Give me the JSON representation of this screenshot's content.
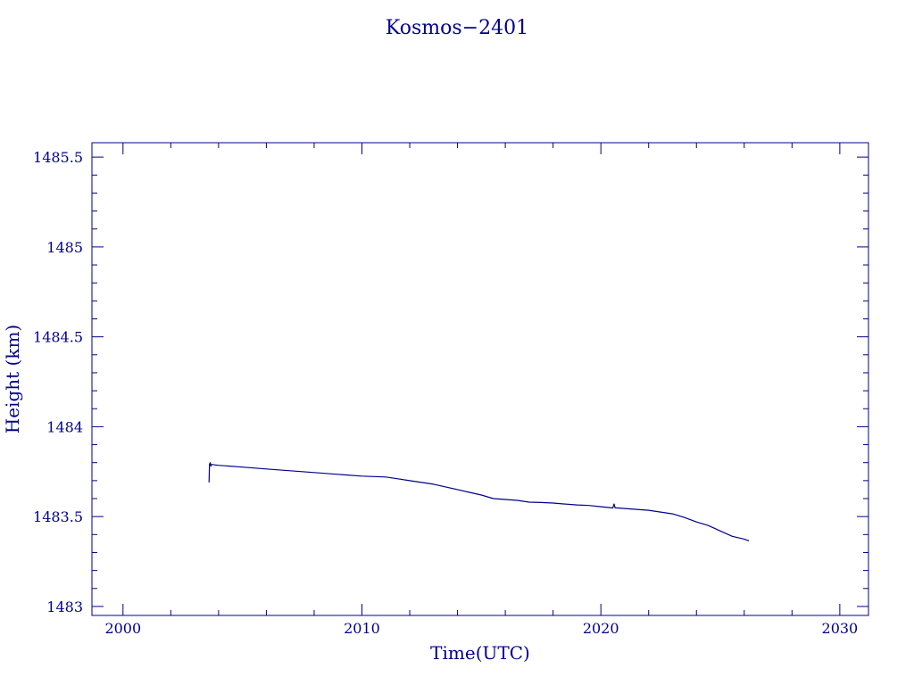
{
  "chart_data": {
    "type": "line",
    "title": "Kosmos−2401",
    "xlabel": "Time(UTC)",
    "ylabel": "Height (km)",
    "xlim": [
      1998.7,
      2031.2
    ],
    "ylim": [
      1482.95,
      1485.58
    ],
    "xticks": [
      2000,
      2010,
      2020,
      2030
    ],
    "xtick_labels": [
      "2000",
      "2010",
      "2020",
      "2030"
    ],
    "yticks": [
      1483,
      1483.5,
      1484,
      1484.5,
      1485,
      1485.5
    ],
    "ytick_labels": [
      "1483",
      "1483.5",
      "1484",
      "1484.5",
      "1485",
      "1485.5"
    ],
    "grid": false,
    "colors": {
      "axis": "#00008b",
      "line": "#00008b"
    },
    "series": [
      {
        "x": [
          2003.6,
          2003.62,
          2003.65,
          2003.68,
          2003.7,
          2004.0,
          2005.0,
          2006.0,
          2007.0,
          2008.0,
          2009.0,
          2010.0,
          2011.0,
          2011.5,
          2012.0,
          2012.5,
          2013.0,
          2013.5,
          2014.0,
          2014.5,
          2015.0,
          2015.5,
          2016.0,
          2016.5,
          2017.0,
          2017.5,
          2018.0,
          2018.5,
          2019.0,
          2019.5,
          2020.0,
          2020.5,
          2020.55,
          2020.6,
          2020.7,
          2021.0,
          2021.5,
          2022.0,
          2022.5,
          2023.0,
          2023.5,
          2024.0,
          2024.5,
          2025.0,
          2025.5,
          2026.0,
          2026.2
        ],
        "y": [
          1483.69,
          1483.79,
          1483.8,
          1483.78,
          1483.79,
          1483.785,
          1483.775,
          1483.765,
          1483.755,
          1483.745,
          1483.735,
          1483.725,
          1483.72,
          1483.71,
          1483.7,
          1483.69,
          1483.68,
          1483.665,
          1483.65,
          1483.635,
          1483.62,
          1483.6,
          1483.595,
          1483.59,
          1483.58,
          1483.578,
          1483.575,
          1483.57,
          1483.565,
          1483.562,
          1483.555,
          1483.548,
          1483.57,
          1483.548,
          1483.548,
          1483.545,
          1483.54,
          1483.535,
          1483.525,
          1483.515,
          1483.495,
          1483.47,
          1483.45,
          1483.42,
          1483.39,
          1483.375,
          1483.365
        ]
      }
    ]
  }
}
